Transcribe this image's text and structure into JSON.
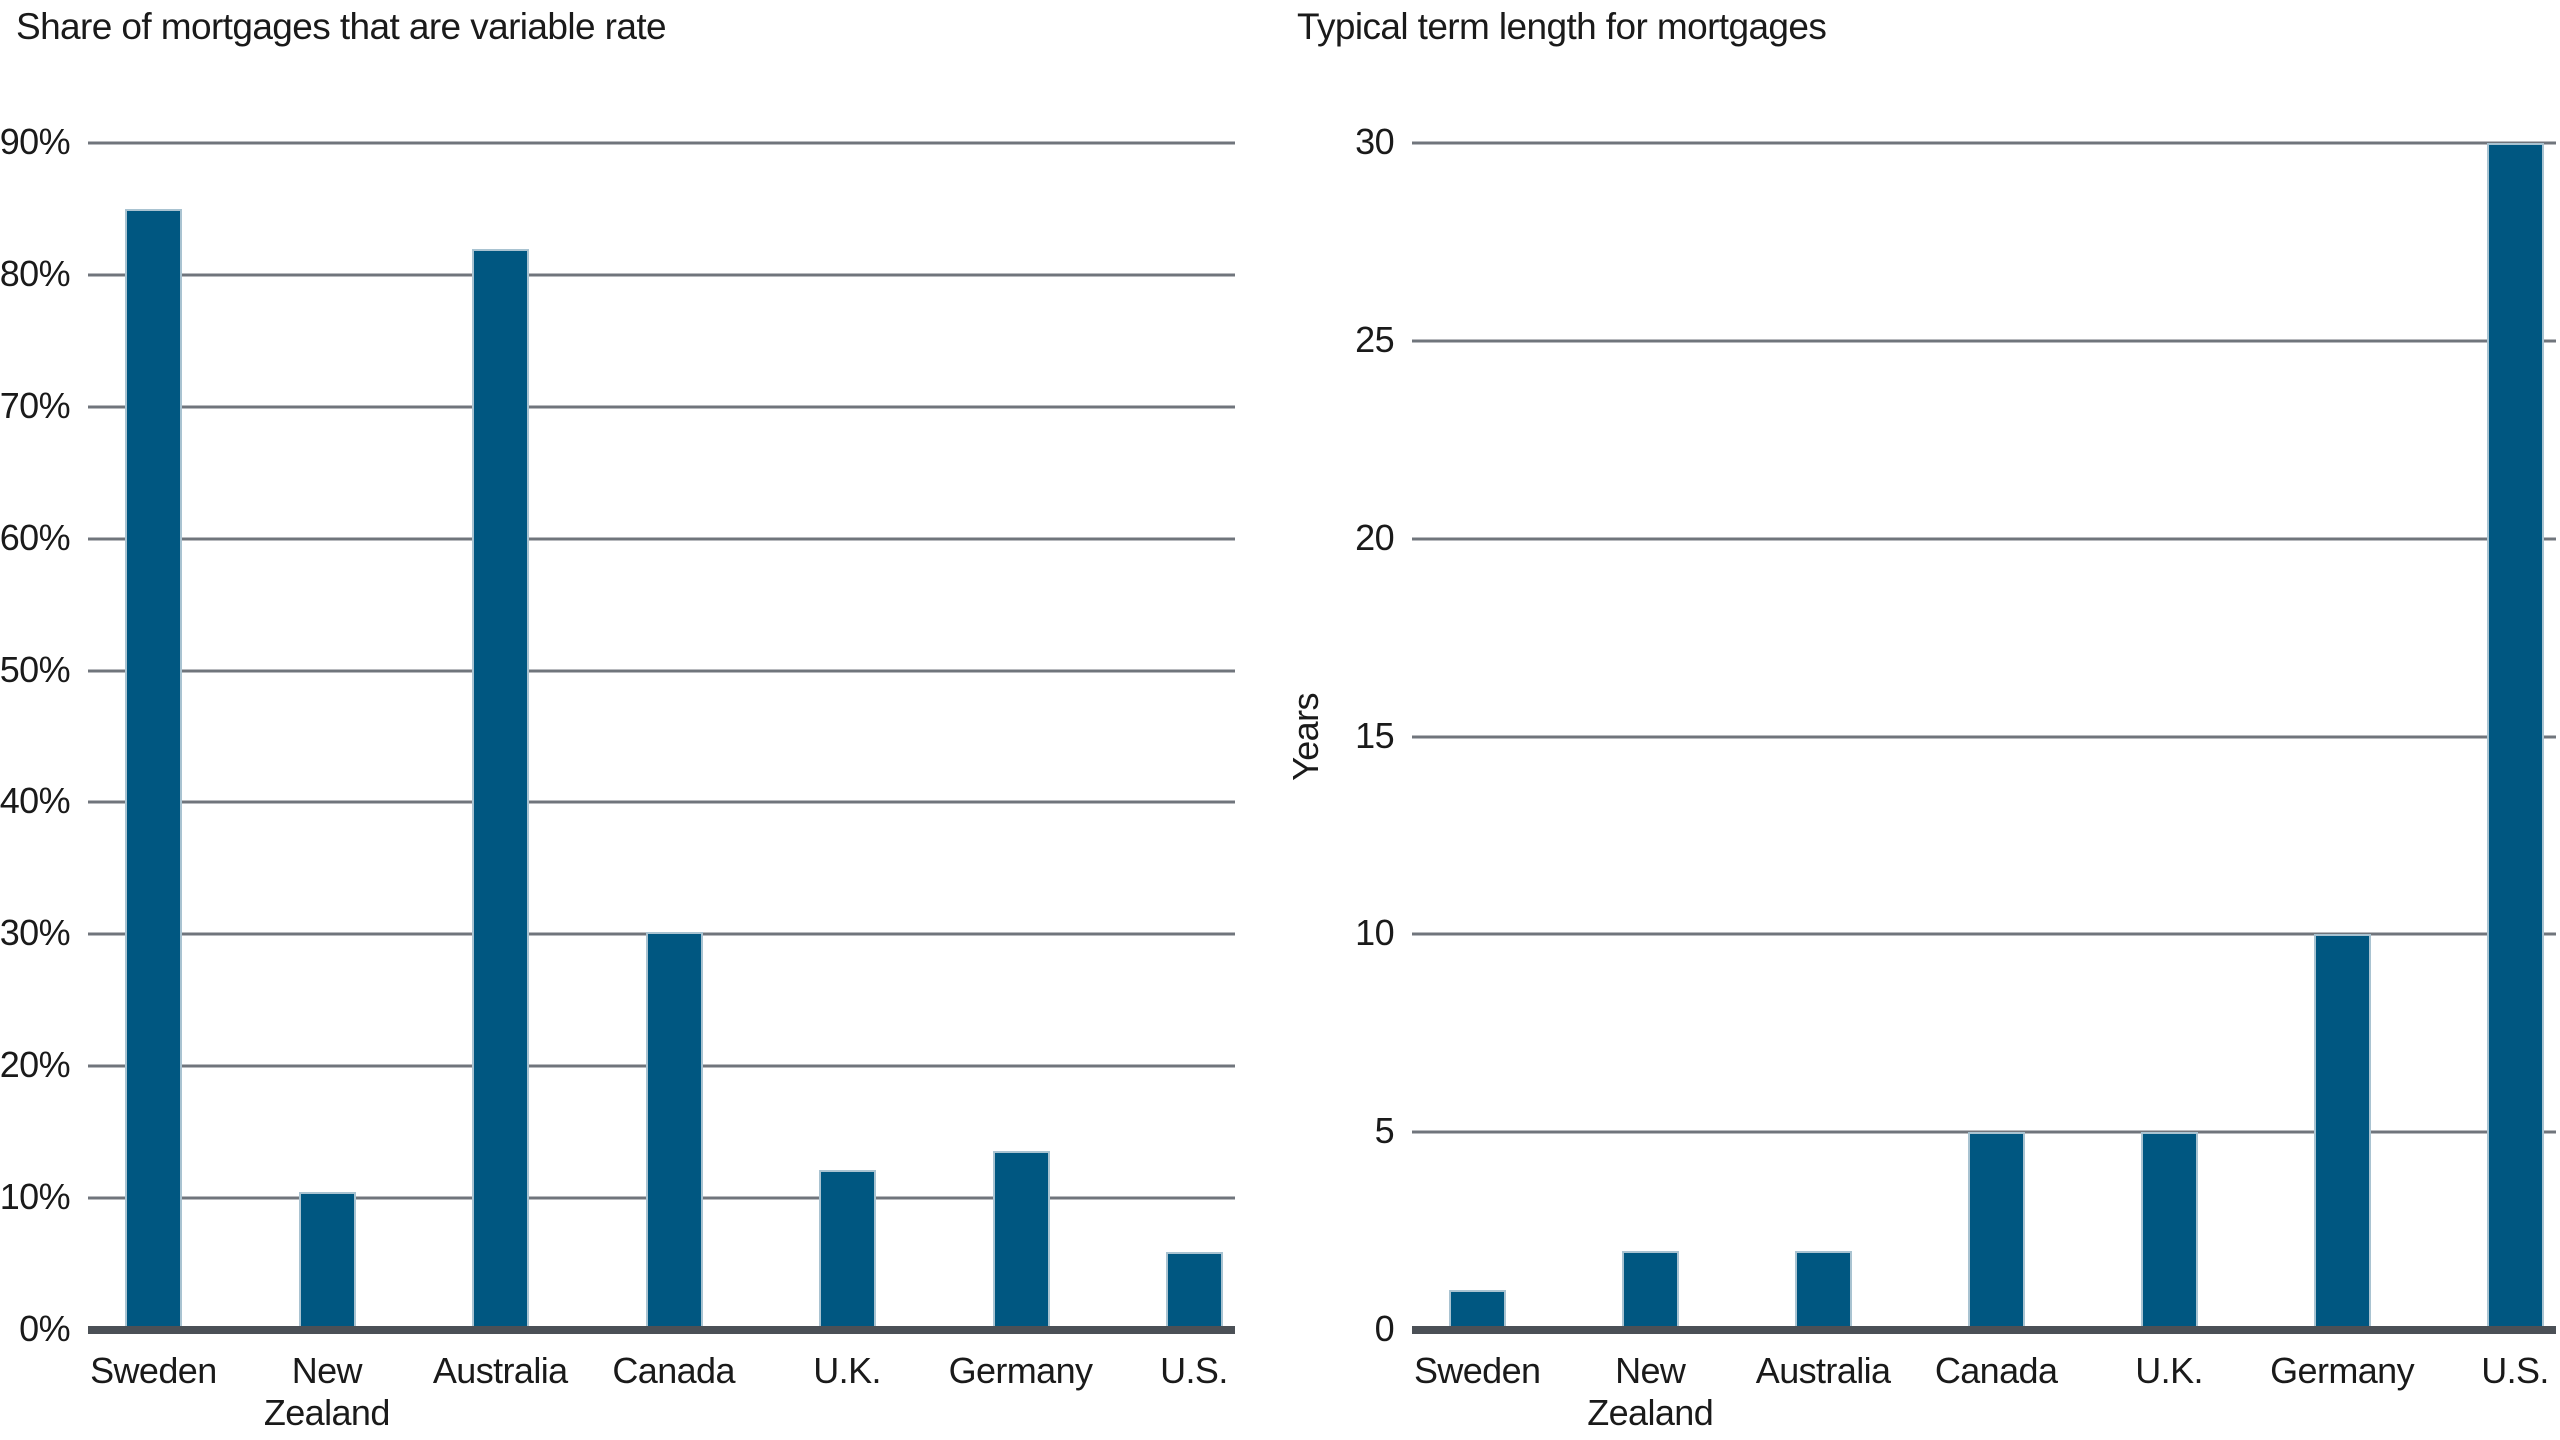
{
  "figure": {
    "background": "#ffffff"
  },
  "colors": {
    "bar_fill": "#005781",
    "bar_edge": "#a9c3d1",
    "gridline": "#70757c",
    "axis_baseline": "#4b5056",
    "text": "#1a1a1a"
  },
  "chart_data": [
    {
      "type": "bar",
      "title": "Share of mortgages that are variable rate",
      "xlabel": "",
      "ylabel": "",
      "categories": [
        "Sweden",
        "New Zealand",
        "Australia",
        "Canada",
        "U.K.",
        "Germany",
        "U.S."
      ],
      "values": [
        85,
        10.5,
        82,
        30.2,
        12.1,
        13.6,
        5.9
      ],
      "ylim": [
        0,
        90
      ],
      "grid": "horizontal",
      "legend": "none",
      "yticks": [
        {
          "label": "90%",
          "value": 90
        },
        {
          "label": "80%",
          "value": 80
        },
        {
          "label": "70%",
          "value": 70
        },
        {
          "label": "60%",
          "value": 60
        },
        {
          "label": "50%",
          "value": 50
        },
        {
          "label": "40%",
          "value": 40
        },
        {
          "label": "30%",
          "value": 30
        },
        {
          "label": "20%",
          "value": 20
        },
        {
          "label": "10%",
          "value": 10
        },
        {
          "label": "0%",
          "value": 0
        }
      ]
    },
    {
      "type": "bar",
      "title": "Typical term length for mortgages",
      "xlabel": "",
      "ylabel": "Years",
      "categories": [
        "Sweden",
        "New Zealand",
        "Australia",
        "Canada",
        "U.K.",
        "Germany",
        "U.S."
      ],
      "values": [
        1,
        2,
        2,
        5,
        5,
        10,
        30
      ],
      "ylim": [
        0,
        30
      ],
      "grid": "horizontal",
      "legend": "none",
      "yticks": [
        {
          "label": "30",
          "value": 30
        },
        {
          "label": "25",
          "value": 25
        },
        {
          "label": "20",
          "value": 20
        },
        {
          "label": "15",
          "value": 15
        },
        {
          "label": "10",
          "value": 10
        },
        {
          "label": "5",
          "value": 5
        },
        {
          "label": "0",
          "value": 0
        }
      ]
    }
  ]
}
